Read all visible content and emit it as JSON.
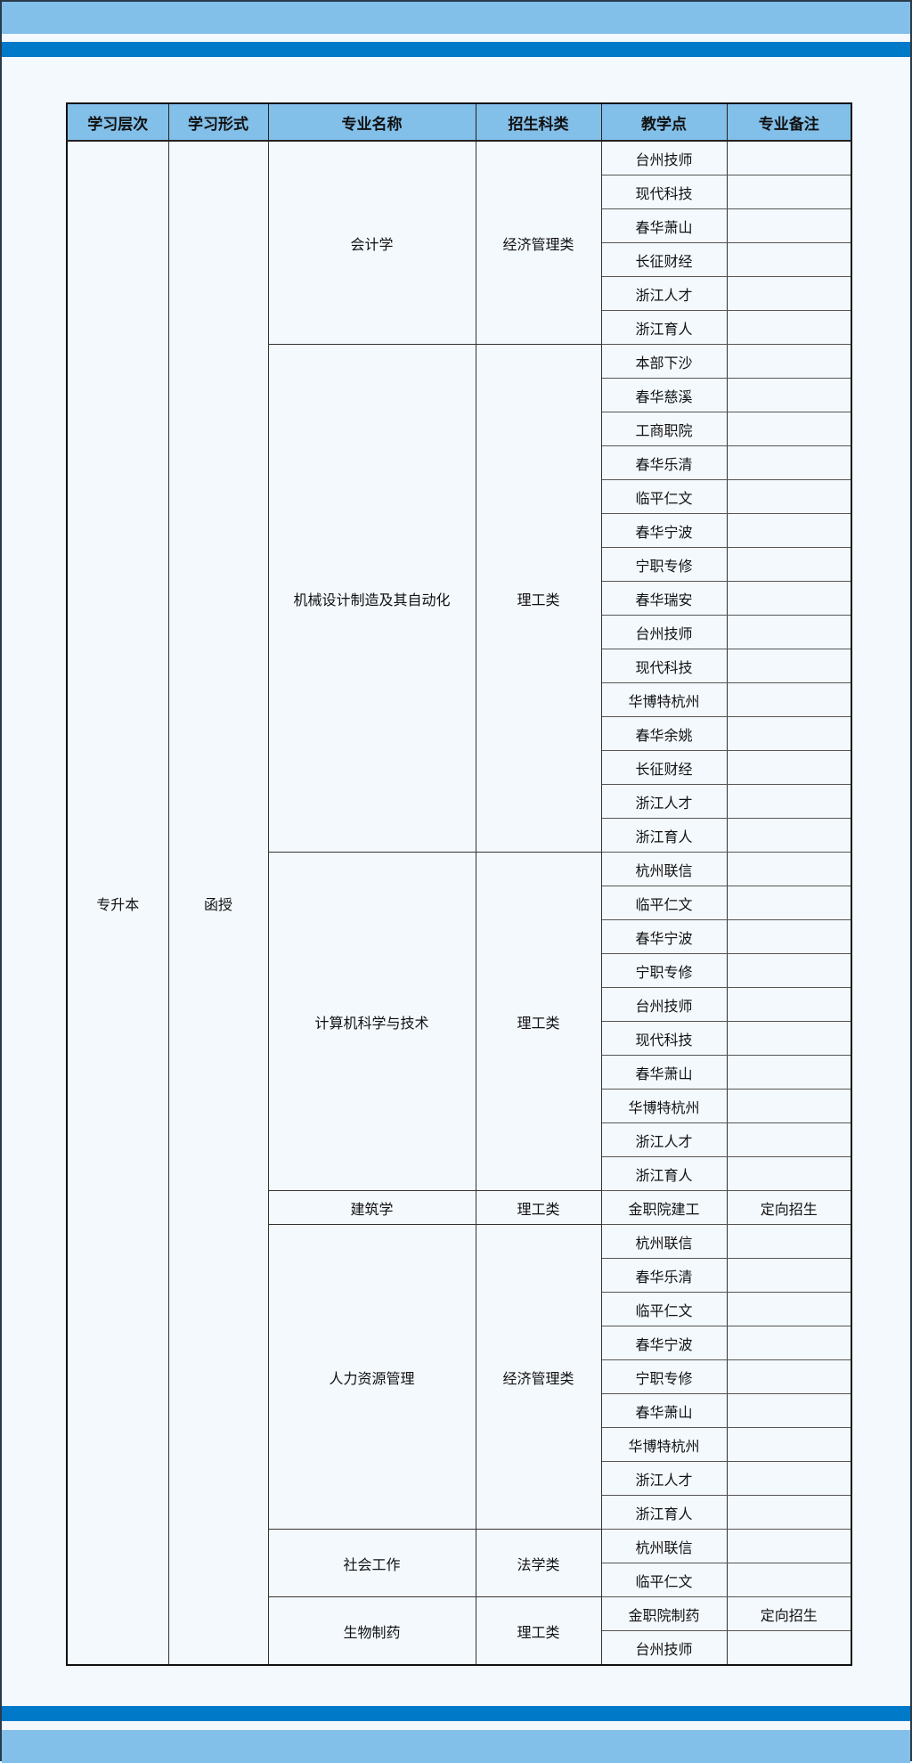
{
  "colors": {
    "header_fill": "#82bfe9",
    "band_dark": "#0079c8",
    "band_light": "#82bfe9"
  },
  "table": {
    "headers": [
      "学习层次",
      "学习形式",
      "专业名称",
      "招生科类",
      "教学点",
      "专业备注"
    ],
    "level": "专升本",
    "form": "函授",
    "groups": [
      {
        "major": "会计学",
        "category": "经济管理类",
        "sites": [
          {
            "name": "台州技师"
          },
          {
            "name": "现代科技"
          },
          {
            "name": "春华萧山"
          },
          {
            "name": "长征财经"
          },
          {
            "name": "浙江人才"
          },
          {
            "name": "浙江育人"
          }
        ]
      },
      {
        "major": "机械设计制造及其自动化",
        "category": "理工类",
        "sites": [
          {
            "name": "本部下沙"
          },
          {
            "name": "春华慈溪"
          },
          {
            "name": "工商职院"
          },
          {
            "name": "春华乐清"
          },
          {
            "name": "临平仁文"
          },
          {
            "name": "春华宁波"
          },
          {
            "name": "宁职专修"
          },
          {
            "name": "春华瑞安"
          },
          {
            "name": "台州技师"
          },
          {
            "name": "现代科技"
          },
          {
            "name": "华博特杭州"
          },
          {
            "name": "春华余姚"
          },
          {
            "name": "长征财经"
          },
          {
            "name": "浙江人才"
          },
          {
            "name": "浙江育人"
          }
        ]
      },
      {
        "major": "计算机科学与技术",
        "category": "理工类",
        "sites": [
          {
            "name": "杭州联信"
          },
          {
            "name": "临平仁文"
          },
          {
            "name": "春华宁波"
          },
          {
            "name": "宁职专修"
          },
          {
            "name": "台州技师"
          },
          {
            "name": "现代科技"
          },
          {
            "name": "春华萧山"
          },
          {
            "name": "华博特杭州"
          },
          {
            "name": "浙江人才"
          },
          {
            "name": "浙江育人"
          }
        ]
      },
      {
        "major": "建筑学",
        "category": "理工类",
        "sites": [
          {
            "name": "金职院建工",
            "note": "定向招生"
          }
        ]
      },
      {
        "major": "人力资源管理",
        "category": "经济管理类",
        "sites": [
          {
            "name": "杭州联信"
          },
          {
            "name": "春华乐清"
          },
          {
            "name": "临平仁文"
          },
          {
            "name": "春华宁波"
          },
          {
            "name": "宁职专修"
          },
          {
            "name": "春华萧山"
          },
          {
            "name": "华博特杭州"
          },
          {
            "name": "浙江人才"
          },
          {
            "name": "浙江育人"
          }
        ]
      },
      {
        "major": "社会工作",
        "category": "法学类",
        "sites": [
          {
            "name": "杭州联信"
          },
          {
            "name": "临平仁文"
          }
        ]
      },
      {
        "major": "生物制药",
        "category": "理工类",
        "sites": [
          {
            "name": "金职院制药",
            "note": "定向招生"
          },
          {
            "name": "台州技师"
          }
        ]
      }
    ]
  }
}
